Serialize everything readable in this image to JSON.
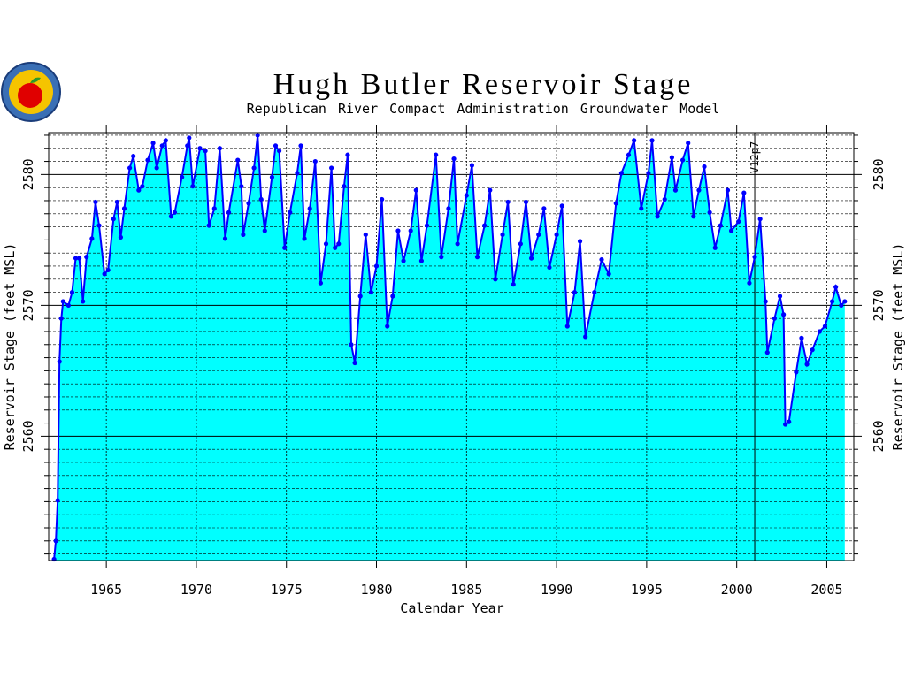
{
  "chart_data": {
    "type": "line",
    "title": "Hugh Butler Reservoir Stage",
    "subtitle": "Republican River Compact Administration Groundwater Model",
    "xlabel": "Calendar Year",
    "ylabel": "Reservoir Stage (feet MSL)",
    "annotation": {
      "text": "V12p7",
      "x": 2001.0
    },
    "xlim": [
      1961.8,
      2006.5
    ],
    "xticks": [
      1965,
      1970,
      1975,
      1980,
      1985,
      1990,
      1995,
      2000,
      2005
    ],
    "ylim": [
      2550.5,
      2583.2
    ],
    "yticks": [
      2560,
      2570,
      2580
    ],
    "minor_yticks": [
      2551,
      2552,
      2553,
      2554,
      2555,
      2556,
      2557,
      2558,
      2559,
      2561,
      2562,
      2563,
      2564,
      2565,
      2566,
      2567,
      2568,
      2569,
      2571,
      2572,
      2573,
      2574,
      2575,
      2576,
      2577,
      2578,
      2579,
      2581,
      2582,
      2583
    ],
    "grid": true,
    "line_color": "#0000ff",
    "fill_color": "#00ffff",
    "x": [
      1962.1,
      1962.2,
      1962.3,
      1962.4,
      1962.5,
      1962.6,
      1962.9,
      1963.1,
      1963.3,
      1963.5,
      1963.7,
      1963.9,
      1964.2,
      1964.4,
      1964.6,
      1964.9,
      1965.1,
      1965.4,
      1965.6,
      1965.8,
      1966.0,
      1966.3,
      1966.5,
      1966.8,
      1967.0,
      1967.3,
      1967.6,
      1967.8,
      1968.1,
      1968.3,
      1968.6,
      1968.8,
      1969.2,
      1969.5,
      1969.6,
      1969.8,
      1970.2,
      1970.5,
      1970.7,
      1971.0,
      1971.3,
      1971.6,
      1971.8,
      1972.3,
      1972.5,
      1972.6,
      1972.9,
      1973.2,
      1973.4,
      1973.6,
      1973.8,
      1974.2,
      1974.4,
      1974.6,
      1974.9,
      1975.2,
      1975.6,
      1975.8,
      1976.0,
      1976.3,
      1976.6,
      1976.9,
      1977.2,
      1977.5,
      1977.7,
      1977.9,
      1978.2,
      1978.4,
      1978.6,
      1978.8,
      1979.1,
      1979.4,
      1979.7,
      1980.0,
      1980.3,
      1980.6,
      1980.9,
      1981.2,
      1981.5,
      1981.9,
      1982.2,
      1982.5,
      1982.8,
      1983.3,
      1983.6,
      1984.0,
      1984.3,
      1984.5,
      1985.0,
      1985.3,
      1985.6,
      1986.0,
      1986.3,
      1986.6,
      1987.0,
      1987.3,
      1987.6,
      1988.0,
      1988.3,
      1988.6,
      1989.0,
      1989.3,
      1989.6,
      1990.0,
      1990.3,
      1990.6,
      1991.0,
      1991.3,
      1991.6,
      1992.1,
      1992.5,
      1992.9,
      1993.3,
      1993.6,
      1994.0,
      1994.3,
      1994.7,
      1995.1,
      1995.3,
      1995.6,
      1996.0,
      1996.4,
      1996.6,
      1997.0,
      1997.3,
      1997.6,
      1997.9,
      1998.2,
      1998.5,
      1998.8,
      1999.1,
      1999.5,
      1999.7,
      2000.1,
      2000.4,
      2000.7,
      2001.0,
      2001.3,
      2001.6,
      2001.7,
      2002.1,
      2002.4,
      2002.6,
      2002.7,
      2002.9,
      2003.3,
      2003.6,
      2003.9,
      2004.2,
      2004.6,
      2004.9,
      2005.3,
      2005.5,
      2005.8,
      2006.0
    ],
    "values": [
      2550.6,
      2552.0,
      2555.1,
      2565.7,
      2569.0,
      2570.3,
      2570.0,
      2571.0,
      2573.6,
      2573.6,
      2570.3,
      2573.7,
      2575.1,
      2577.9,
      2576.1,
      2572.4,
      2572.7,
      2576.6,
      2577.9,
      2575.2,
      2577.4,
      2580.5,
      2581.4,
      2578.8,
      2579.1,
      2581.1,
      2582.4,
      2580.5,
      2582.2,
      2582.6,
      2576.8,
      2577.1,
      2579.8,
      2582.2,
      2582.8,
      2579.1,
      2582.0,
      2581.8,
      2576.1,
      2577.4,
      2582.0,
      2575.1,
      2577.1,
      2581.1,
      2579.1,
      2575.4,
      2577.8,
      2580.5,
      2583.0,
      2578.1,
      2575.7,
      2579.8,
      2582.2,
      2581.8,
      2574.4,
      2577.1,
      2580.1,
      2582.2,
      2575.1,
      2577.4,
      2581.0,
      2571.7,
      2574.7,
      2580.5,
      2574.4,
      2574.7,
      2579.1,
      2581.5,
      2567.0,
      2565.6,
      2570.7,
      2575.4,
      2571.0,
      2573.0,
      2578.1,
      2568.4,
      2570.7,
      2575.7,
      2573.4,
      2575.7,
      2578.8,
      2573.4,
      2576.1,
      2581.5,
      2573.7,
      2577.4,
      2581.2,
      2574.7,
      2578.4,
      2580.7,
      2573.7,
      2576.1,
      2578.8,
      2572.0,
      2575.4,
      2577.9,
      2571.6,
      2574.7,
      2577.9,
      2573.6,
      2575.4,
      2577.4,
      2572.9,
      2575.4,
      2577.6,
      2568.4,
      2571.0,
      2574.9,
      2567.6,
      2571.0,
      2573.5,
      2572.4,
      2577.8,
      2580.1,
      2581.5,
      2582.6,
      2577.4,
      2580.1,
      2582.6,
      2576.8,
      2578.1,
      2581.3,
      2578.8,
      2581.1,
      2582.4,
      2576.8,
      2578.8,
      2580.6,
      2577.1,
      2574.4,
      2576.1,
      2578.8,
      2575.7,
      2576.4,
      2578.6,
      2571.7,
      2573.7,
      2576.6,
      2570.3,
      2566.4,
      2569.0,
      2570.7,
      2569.3,
      2560.9,
      2561.1,
      2564.9,
      2567.5,
      2565.5,
      2566.6,
      2568.0,
      2568.4,
      2570.3,
      2571.4,
      2570.0,
      2570.3
    ]
  }
}
